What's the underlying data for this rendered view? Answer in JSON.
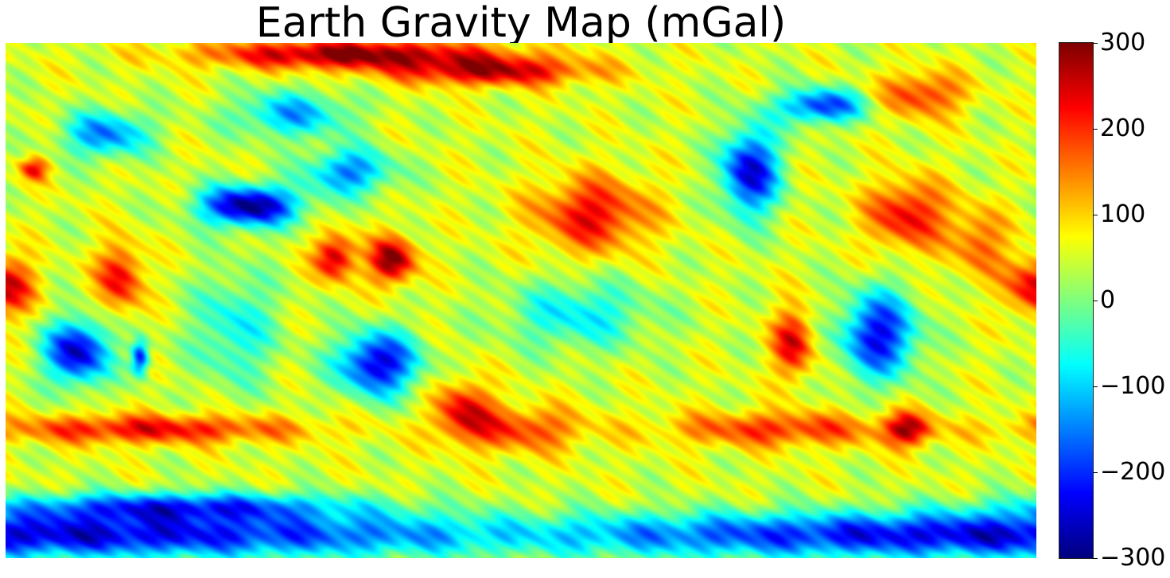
{
  "title": "Earth Gravity Map (mGal)",
  "colorbar": {
    "colormap": "jet",
    "min": -300,
    "max": 300,
    "ticks": [
      {
        "value": 300,
        "label": "300"
      },
      {
        "value": 200,
        "label": "200"
      },
      {
        "value": 100,
        "label": "100"
      },
      {
        "value": 0,
        "label": "0"
      },
      {
        "value": -100,
        "label": "−100"
      },
      {
        "value": -200,
        "label": "−200"
      },
      {
        "value": -300,
        "label": "−300"
      }
    ],
    "colors": [
      "#00007f",
      "#0000ff",
      "#007fff",
      "#00ffff",
      "#7fff7f",
      "#ffff00",
      "#ff7f00",
      "#ff0000",
      "#7f0000"
    ]
  },
  "map": {
    "projection": "equirectangular",
    "central_longitude": "180",
    "background_value": 50,
    "anomalies": [
      {
        "name": "north-polar-high",
        "lon": 120,
        "lat": 86,
        "value": 300,
        "r_lon": 50,
        "r_lat": 5
      },
      {
        "name": "north-pacific-arctic-high",
        "lon": 170,
        "lat": 80,
        "value": 260,
        "r_lon": 35,
        "r_lat": 5
      },
      {
        "name": "greenland-high",
        "lon": -40,
        "lat": 72,
        "value": 200,
        "r_lon": 15,
        "r_lat": 8
      },
      {
        "name": "alpine-high",
        "lon": 10,
        "lat": 46,
        "value": 220,
        "r_lon": 5,
        "r_lat": 4
      },
      {
        "name": "east-africa-high",
        "lon": 40,
        "lat": 8,
        "value": 230,
        "r_lon": 8,
        "r_lat": 12
      },
      {
        "name": "west-africa-high",
        "lon": 0,
        "lat": 5,
        "value": 250,
        "r_lon": 10,
        "r_lat": 10
      },
      {
        "name": "tibet-low",
        "lon": 85,
        "lat": 33,
        "value": -300,
        "r_lon": 17,
        "r_lat": 7
      },
      {
        "name": "southeast-asia-high",
        "lon": 115,
        "lat": 15,
        "value": 270,
        "r_lon": 7,
        "r_lat": 8
      },
      {
        "name": "philippine-high",
        "lon": 135,
        "lat": 14,
        "value": 300,
        "r_lon": 8,
        "r_lat": 8
      },
      {
        "name": "north-pacific-high",
        "lon": -155,
        "lat": 30,
        "value": 230,
        "r_lon": 20,
        "r_lat": 13
      },
      {
        "name": "north-america-low",
        "lon": -100,
        "lat": 45,
        "value": -250,
        "r_lon": 10,
        "r_lat": 15
      },
      {
        "name": "north-atlantic-high",
        "lon": -45,
        "lat": 30,
        "value": 230,
        "r_lon": 14,
        "r_lat": 12
      },
      {
        "name": "mid-atlantic-high",
        "lon": -20,
        "lat": 20,
        "value": 170,
        "r_lon": 10,
        "r_lat": 12
      },
      {
        "name": "andes-high",
        "lon": -85,
        "lat": -15,
        "value": 240,
        "r_lon": 7,
        "r_lat": 12
      },
      {
        "name": "south-america-low",
        "lon": -55,
        "lat": -12,
        "value": -230,
        "r_lon": 13,
        "r_lat": 15
      },
      {
        "name": "south-atlantic-high",
        "lon": -45,
        "lat": -45,
        "value": 240,
        "r_lon": 8,
        "r_lat": 6
      },
      {
        "name": "south-africa-low",
        "lon": 25,
        "lat": -18,
        "value": -260,
        "r_lon": 11,
        "r_lat": 11
      },
      {
        "name": "madagascar-low",
        "lon": 47,
        "lat": -20,
        "value": -220,
        "r_lon": 3,
        "r_lat": 6
      },
      {
        "name": "australia-low",
        "lon": 130,
        "lat": -22,
        "value": -250,
        "r_lon": 14,
        "r_lat": 11
      },
      {
        "name": "tasman-high",
        "lon": 160,
        "lat": -38,
        "value": 220,
        "r_lon": 10,
        "r_lat": 10
      },
      {
        "name": "southern-ocean-band-west",
        "lon": 50,
        "lat": -45,
        "value": 230,
        "r_lon": 55,
        "r_lat": 5
      },
      {
        "name": "southern-ocean-band-east",
        "lon": -90,
        "lat": -45,
        "value": 200,
        "r_lon": 40,
        "r_lat": 6
      },
      {
        "name": "south-pacific-high",
        "lon": 180,
        "lat": -45,
        "value": 190,
        "r_lon": 22,
        "r_lat": 8
      },
      {
        "name": "antarctic-low",
        "lon": 0,
        "lat": -82,
        "value": -250,
        "r_lon": 200,
        "r_lat": 8
      },
      {
        "name": "antarctic-coast-low",
        "lon": 60,
        "lat": -72,
        "value": -180,
        "r_lon": 60,
        "r_lat": 5
      },
      {
        "name": "east-pacific-low",
        "lon": -160,
        "lat": -5,
        "value": -80,
        "r_lon": 25,
        "r_lat": 12
      },
      {
        "name": "east-asia-low",
        "lon": 120,
        "lat": 45,
        "value": -150,
        "r_lon": 15,
        "r_lat": 8
      },
      {
        "name": "siberia-low",
        "lon": 100,
        "lat": 65,
        "value": -120,
        "r_lon": 20,
        "r_lat": 8
      },
      {
        "name": "indian-ocean-low",
        "lon": 80,
        "lat": -10,
        "value": -70,
        "r_lon": 15,
        "r_lat": 20
      },
      {
        "name": "arctic-canada-low",
        "lon": -75,
        "lat": 68,
        "value": -200,
        "r_lon": 15,
        "r_lat": 6
      },
      {
        "name": "europe-low",
        "lon": 35,
        "lat": 58,
        "value": -150,
        "r_lon": 15,
        "r_lat": 8
      }
    ]
  }
}
